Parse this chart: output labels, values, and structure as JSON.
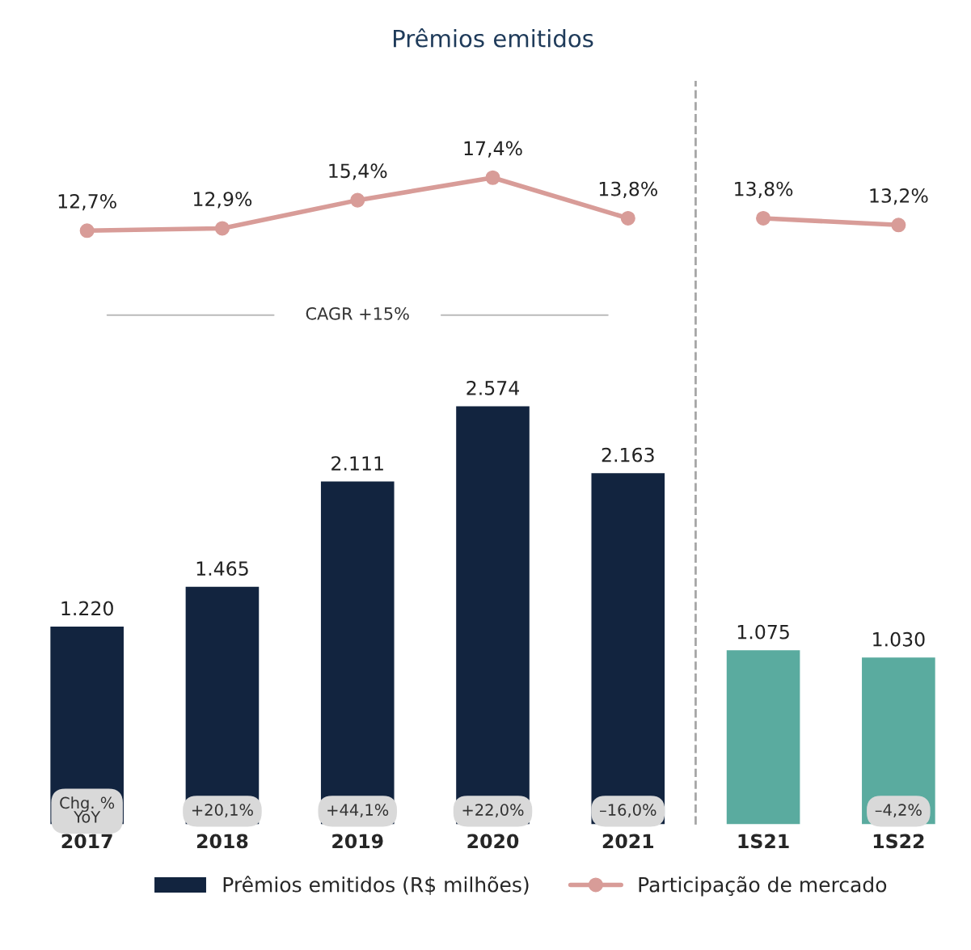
{
  "chart_data": {
    "type": "bar",
    "title": "Prêmios emitidos",
    "categories": [
      "2017",
      "2018",
      "2019",
      "2020",
      "2021",
      "1S21",
      "1S22"
    ],
    "ylim": [
      0,
      4570
    ],
    "y2lim": [
      -40,
      26
    ],
    "tick_labels": "x",
    "legend": "bottom",
    "series": [
      {
        "name": "Prêmios emitidos (R$ milhões)",
        "color": "#12243f",
        "colors": [
          "#12243f",
          "#12243f",
          "#12243f",
          "#12243f",
          "#12243f",
          "#5aab9f",
          "#5aab9f"
        ],
        "values": [
          1220,
          1465,
          2111,
          2574,
          2163,
          1075,
          1030
        ],
        "value_labels": [
          "1.220",
          "1.465",
          "2.111",
          "2.574",
          "2.163",
          "1.075",
          "1.030"
        ]
      },
      {
        "name": "Participação de mercado",
        "type": "line",
        "axis": "y2",
        "marker": "circle",
        "color": "#d89c98",
        "values": [
          12.7,
          12.9,
          15.4,
          17.4,
          13.8,
          null,
          null
        ],
        "value_labels": [
          "12,7%",
          "12,9%",
          "15,4%",
          "17,4%",
          "13,8%",
          null,
          null
        ]
      },
      {
        "type": "line",
        "axis": "y2",
        "marker": "circle",
        "color": "#d89c98",
        "values": [
          null,
          null,
          null,
          null,
          null,
          13.8,
          13.2
        ],
        "value_labels": [
          null,
          null,
          null,
          null,
          null,
          "13,8%",
          "13,2%"
        ]
      }
    ],
    "annotations": [
      "CAGR +15%",
      "Chg. %\nYoY",
      "+20,1%",
      "+44,1%",
      "+22,0%",
      "–16,0%",
      "–4,2%"
    ]
  }
}
